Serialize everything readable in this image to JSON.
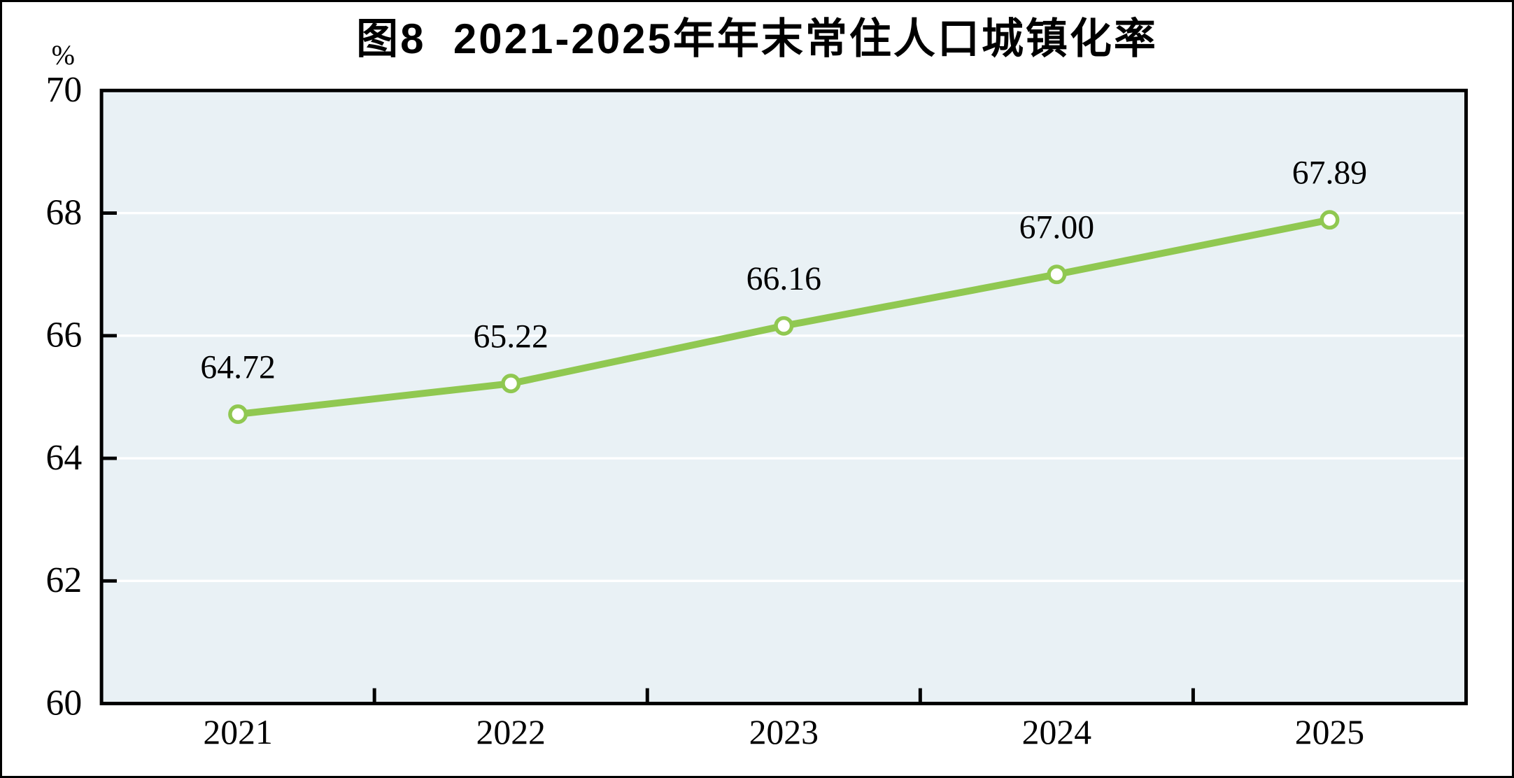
{
  "title": "图8  2021-2025年年末常住人口城镇化率",
  "y_axis_unit": "%",
  "colors": {
    "line": "#90c851",
    "marker_fill": "#ffffff",
    "plot_background": "#e9f1f5",
    "gridline": "#ffffff",
    "axis": "#000000",
    "text": "#000000",
    "frame": "#000000"
  },
  "chart_data": {
    "type": "line",
    "title": "图8  2021-2025年年末常住人口城镇化率",
    "categories": [
      "2021",
      "2022",
      "2023",
      "2024",
      "2025"
    ],
    "values": [
      64.72,
      65.22,
      66.16,
      67.0,
      67.89
    ],
    "value_labels": [
      "64.72",
      "65.22",
      "66.16",
      "67.00",
      "67.89"
    ],
    "xlabel": "",
    "ylabel": "%",
    "ylim": [
      60,
      70
    ],
    "yticks": [
      60,
      62,
      64,
      66,
      68,
      70
    ],
    "ytick_labels": [
      "60",
      "62",
      "64",
      "66",
      "68",
      "70"
    ],
    "grid": "horizontal-white-gridlines-at-interior-ticks",
    "legend": "none",
    "marker": "circle-white-fill-green-stroke"
  }
}
